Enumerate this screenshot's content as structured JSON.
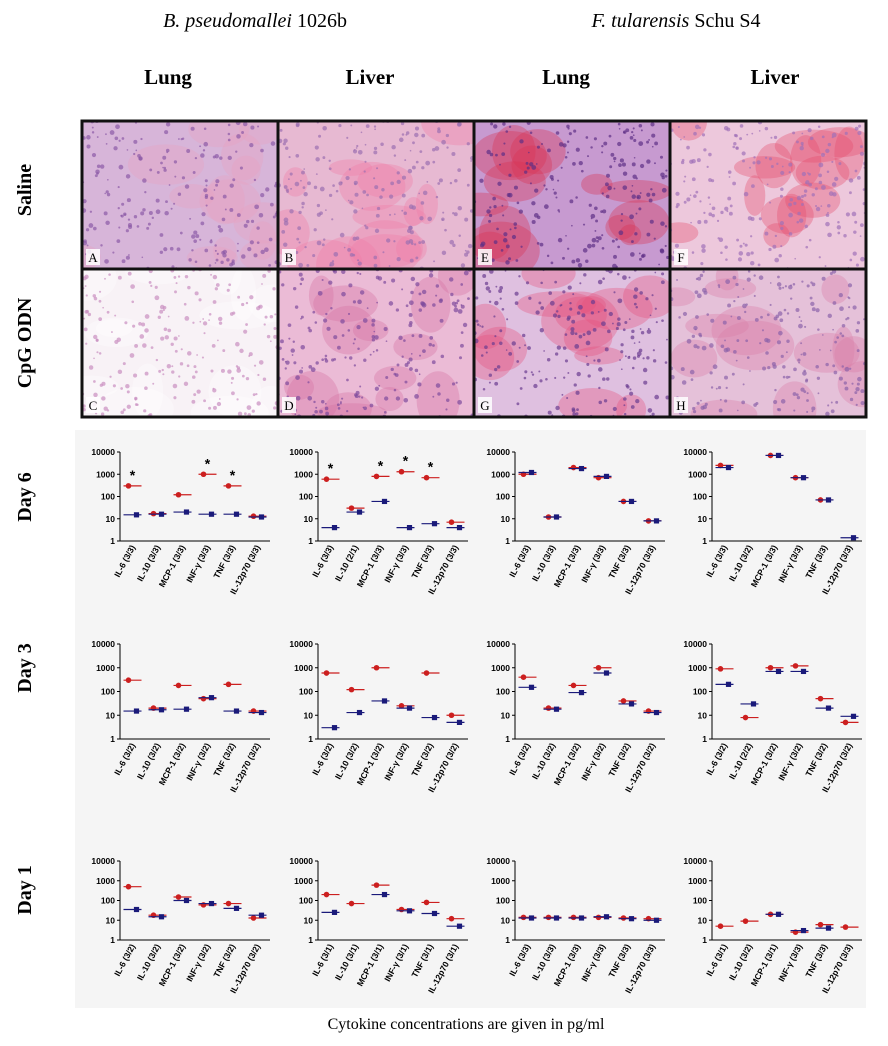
{
  "headers": [
    {
      "organism": "B. pseudomallei",
      "strain": "1026b"
    },
    {
      "organism": "F. tularensis",
      "strain": "Schu S4"
    }
  ],
  "tissues": [
    "Lung",
    "Liver",
    "Lung",
    "Liver"
  ],
  "treatments": [
    "Saline",
    "CpG ODN"
  ],
  "panels": [
    "A",
    "B",
    "E",
    "F",
    "C",
    "D",
    "G",
    "H"
  ],
  "days": [
    "Day 6",
    "Day 3",
    "Day 1"
  ],
  "chart_data": [
    {
      "type": "dot",
      "log_scale": true,
      "ylim": [
        1,
        10000
      ],
      "yticks": [
        1,
        10,
        100,
        1000,
        10000
      ],
      "categories": [
        "IL-6 (3/3)",
        "IL-10 (3/3)",
        "MCP-1 (3/3)",
        "INF-γ (3/3)",
        "TNF (3/3)",
        "IL-12p70 (3/3)"
      ],
      "series": [
        {
          "color": "#cc1f1f",
          "values": [
            300,
            17,
            120,
            1000,
            300,
            13
          ]
        },
        {
          "color": "#1a1a7a",
          "values": [
            15,
            16,
            20,
            16,
            16,
            12
          ]
        }
      ],
      "annotations": [
        "*",
        null,
        null,
        "*",
        "*",
        null
      ]
    },
    {
      "type": "dot",
      "log_scale": true,
      "ylim": [
        1,
        10000
      ],
      "yticks": [
        1,
        10,
        100,
        1000,
        10000
      ],
      "categories": [
        "IL-6 (3/3)",
        "IL-10 (2/1)",
        "MCP-1 (3/3)",
        "INF-γ (3/3)",
        "TNF (3/3)",
        "IL-12p70 (3/3)"
      ],
      "series": [
        {
          "color": "#cc1f1f",
          "values": [
            600,
            30,
            800,
            1300,
            700,
            7
          ]
        },
        {
          "color": "#1a1a7a",
          "values": [
            4,
            20,
            60,
            4,
            6,
            4
          ]
        }
      ],
      "annotations": [
        "*",
        null,
        "*",
        "*",
        "*",
        null
      ]
    },
    {
      "type": "dot",
      "log_scale": true,
      "ylim": [
        1,
        10000
      ],
      "yticks": [
        1,
        10,
        100,
        1000,
        10000
      ],
      "categories": [
        "IL-6 (3/3)",
        "IL-10 (3/3)",
        "MCP-1 (3/3)",
        "INF-γ (3/3)",
        "TNF (3/3)",
        "IL-12p70 (3/3)"
      ],
      "series": [
        {
          "color": "#cc1f1f",
          "values": [
            1000,
            12,
            2000,
            700,
            60,
            8
          ]
        },
        {
          "color": "#1a1a7a",
          "values": [
            1200,
            12,
            1800,
            800,
            60,
            8
          ]
        }
      ]
    },
    {
      "type": "dot",
      "log_scale": true,
      "ylim": [
        1,
        10000
      ],
      "yticks": [
        1,
        10,
        100,
        1000,
        10000
      ],
      "categories": [
        "IL-6 (3/3)",
        "IL-10 (3/2)",
        "MCP-1 (3/3)",
        "INF-γ (3/3)",
        "TNF (3/3)",
        "IL-12p70 (3/3)"
      ],
      "series": [
        {
          "color": "#cc1f1f",
          "values": [
            2500,
            null,
            7000,
            700,
            70,
            null
          ]
        },
        {
          "color": "#1a1a7a",
          "values": [
            2000,
            null,
            7000,
            700,
            70,
            1.4
          ]
        }
      ]
    },
    {
      "type": "dot",
      "log_scale": true,
      "ylim": [
        1,
        10000
      ],
      "yticks": [
        1,
        10,
        100,
        1000,
        10000
      ],
      "categories": [
        "IL-6 (3/2)",
        "IL-10 (3/2)",
        "MCP-1 (3/2)",
        "INF-γ (3/2)",
        "TNF (3/2)",
        "IL-12p70 (3/2)"
      ],
      "series": [
        {
          "color": "#cc1f1f",
          "values": [
            300,
            20,
            180,
            50,
            200,
            15
          ]
        },
        {
          "color": "#1a1a7a",
          "values": [
            15,
            17,
            18,
            55,
            15,
            13
          ]
        }
      ]
    },
    {
      "type": "dot",
      "log_scale": true,
      "ylim": [
        1,
        10000
      ],
      "yticks": [
        1,
        10,
        100,
        1000,
        10000
      ],
      "categories": [
        "IL-6 (3/2)",
        "IL-10 (3/2)",
        "MCP-1 (3/2)",
        "INF-γ (3/2)",
        "TNF (3/2)",
        "IL-12p70 (3/2)"
      ],
      "series": [
        {
          "color": "#cc1f1f",
          "values": [
            600,
            120,
            1000,
            25,
            600,
            10
          ]
        },
        {
          "color": "#1a1a7a",
          "values": [
            3,
            13,
            40,
            20,
            8,
            5
          ]
        }
      ]
    },
    {
      "type": "dot",
      "log_scale": true,
      "ylim": [
        1,
        10000
      ],
      "yticks": [
        1,
        10,
        100,
        1000,
        10000
      ],
      "categories": [
        "IL-6 (3/2)",
        "IL-10 (3/2)",
        "MCP-1 (3/2)",
        "INF-γ (3/2)",
        "TNF (3/2)",
        "IL-12p70 (3/2)"
      ],
      "series": [
        {
          "color": "#cc1f1f",
          "values": [
            400,
            20,
            180,
            1000,
            40,
            15
          ]
        },
        {
          "color": "#1a1a7a",
          "values": [
            150,
            18,
            90,
            600,
            30,
            13
          ]
        }
      ]
    },
    {
      "type": "dot",
      "log_scale": true,
      "ylim": [
        1,
        10000
      ],
      "yticks": [
        1,
        10,
        100,
        1000,
        10000
      ],
      "categories": [
        "IL-6 (3/2)",
        "IL-10 (2/2)",
        "MCP-1 (3/2)",
        "INF-γ (3/2)",
        "TNF (3/2)",
        "IL-12p70 (3/2)"
      ],
      "series": [
        {
          "color": "#cc1f1f",
          "values": [
            900,
            8,
            1000,
            1200,
            50,
            5
          ]
        },
        {
          "color": "#1a1a7a",
          "values": [
            200,
            30,
            700,
            700,
            20,
            9
          ]
        }
      ]
    },
    {
      "type": "dot",
      "log_scale": true,
      "ylim": [
        1,
        10000
      ],
      "yticks": [
        1,
        10,
        100,
        1000,
        10000
      ],
      "categories": [
        "IL-6 (3/2)",
        "IL-10 (3/2)",
        "MCP-1 (3/2)",
        "INF-γ (3/2)",
        "TNF (3/2)",
        "IL-12p70 (3/2)"
      ],
      "series": [
        {
          "color": "#cc1f1f",
          "values": [
            500,
            18,
            150,
            60,
            70,
            13
          ]
        },
        {
          "color": "#1a1a7a",
          "values": [
            35,
            15,
            100,
            70,
            40,
            18
          ]
        }
      ]
    },
    {
      "type": "dot",
      "log_scale": true,
      "ylim": [
        1,
        10000
      ],
      "yticks": [
        1,
        10,
        100,
        1000,
        10000
      ],
      "categories": [
        "IL-6 (3/1)",
        "IL-10 (3/1)",
        "MCP-1 (3/1)",
        "INF-γ (3/1)",
        "TNF (3/1)",
        "IL-12p70 (3/1)"
      ],
      "series": [
        {
          "color": "#cc1f1f",
          "values": [
            200,
            70,
            600,
            35,
            80,
            12
          ]
        },
        {
          "color": "#1a1a7a",
          "values": [
            25,
            null,
            200,
            30,
            22,
            5
          ]
        }
      ]
    },
    {
      "type": "dot",
      "log_scale": true,
      "ylim": [
        1,
        10000
      ],
      "yticks": [
        1,
        10,
        100,
        1000,
        10000
      ],
      "categories": [
        "IL-6 (3/3)",
        "IL-10 (3/3)",
        "MCP-1 (3/3)",
        "INF-γ (3/3)",
        "TNF (3/3)",
        "IL-12p70 (3/3)"
      ],
      "series": [
        {
          "color": "#cc1f1f",
          "values": [
            14,
            14,
            14,
            14,
            13,
            12
          ]
        },
        {
          "color": "#1a1a7a",
          "values": [
            13,
            13,
            13,
            15,
            12,
            10
          ]
        }
      ]
    },
    {
      "type": "dot",
      "log_scale": true,
      "ylim": [
        1,
        10000
      ],
      "yticks": [
        1,
        10,
        100,
        1000,
        10000
      ],
      "categories": [
        "IL-6 (3/1)",
        "IL-10 (3/2)",
        "MCP-1 (3/1)",
        "INF-γ (3/3)",
        "TNF (3/3)",
        "IL-12p70 (3/3)"
      ],
      "series": [
        {
          "color": "#cc1f1f",
          "values": [
            5,
            9,
            20,
            2.5,
            6,
            4.5
          ]
        },
        {
          "color": "#1a1a7a",
          "values": [
            null,
            null,
            20,
            3,
            4,
            null
          ]
        }
      ]
    }
  ],
  "footnote": "Cytokine concentrations are given in pg/ml"
}
